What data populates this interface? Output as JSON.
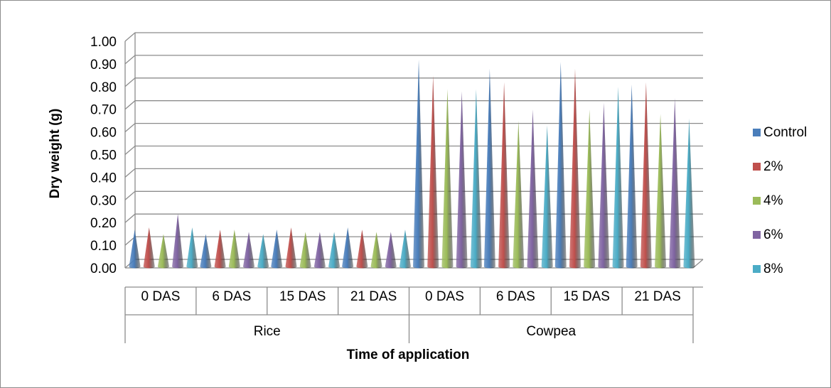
{
  "chart_data": {
    "type": "bar",
    "bar_shape": "cone",
    "xlabel": "Time of application",
    "ylabel": "Dry weight (g)",
    "ylim": [
      0,
      1
    ],
    "ytick_step": 0.1,
    "ytick_labels": [
      "0.00",
      "0.10",
      "0.20",
      "0.30",
      "0.40",
      "0.50",
      "0.60",
      "0.70",
      "0.80",
      "0.90",
      "1.00"
    ],
    "grid": true,
    "legend_position": "right",
    "groups": [
      {
        "name": "Rice",
        "categories": [
          "0 DAS",
          "6 DAS",
          "15 DAS",
          "21 DAS"
        ]
      },
      {
        "name": "Cowpea",
        "categories": [
          "0 DAS",
          "6 DAS",
          "15 DAS",
          "21 DAS"
        ]
      }
    ],
    "series": [
      {
        "name": "Control",
        "color": "#4a7ebb",
        "values": [
          0.15,
          0.13,
          0.15,
          0.16,
          0.9,
          0.86,
          0.89,
          0.79
        ]
      },
      {
        "name": "2%",
        "color": "#c0504d",
        "values": [
          0.16,
          0.15,
          0.16,
          0.15,
          0.83,
          0.8,
          0.86,
          0.8
        ]
      },
      {
        "name": "4%",
        "color": "#9bbb59",
        "values": [
          0.13,
          0.15,
          0.14,
          0.14,
          0.77,
          0.63,
          0.68,
          0.66
        ]
      },
      {
        "name": "6%",
        "color": "#8064a2",
        "values": [
          0.22,
          0.14,
          0.14,
          0.14,
          0.76,
          0.68,
          0.71,
          0.73
        ]
      },
      {
        "name": "8%",
        "color": "#4bacc6",
        "values": [
          0.16,
          0.13,
          0.14,
          0.15,
          0.77,
          0.61,
          0.78,
          0.64
        ]
      }
    ]
  }
}
